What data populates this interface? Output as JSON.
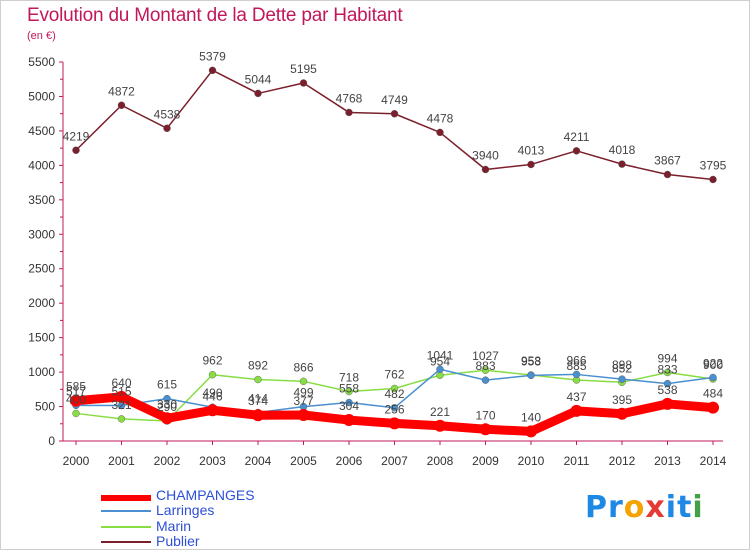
{
  "chart_data": {
    "type": "line",
    "title": "Evolution du Montant de la Dette par Habitant",
    "subtitle": "(en €)",
    "x": [
      "2000",
      "2001",
      "2002",
      "2003",
      "2004",
      "2005",
      "2006",
      "2007",
      "2008",
      "2009",
      "2010",
      "2011",
      "2012",
      "2013",
      "2014"
    ],
    "ylim": [
      0,
      5500
    ],
    "yticks": [
      0,
      500,
      1000,
      1500,
      2000,
      2500,
      3000,
      3500,
      4000,
      4500,
      5000,
      5500
    ],
    "grid": false,
    "legend_position": "bottom-left",
    "series": [
      {
        "name": "CHAMPANGES",
        "color": "#ff0000",
        "emphasis": true,
        "values": [
          585,
          640,
          330,
          446,
          374,
          377,
          304,
          256,
          221,
          170,
          140,
          437,
          395,
          538,
          484
        ]
      },
      {
        "name": "Larringes",
        "color": "#4a8fd0",
        "emphasis": false,
        "values": [
          517,
          515,
          615,
          490,
          414,
          499,
          558,
          482,
          1041,
          883,
          953,
          966,
          898,
          833,
          922
        ]
      },
      {
        "name": "Marin",
        "color": "#88dd44",
        "emphasis": false,
        "values": [
          400,
          321,
          290,
          962,
          892,
          866,
          718,
          762,
          954,
          1027,
          958,
          885,
          852,
          994,
          900
        ]
      },
      {
        "name": "Publier",
        "color": "#7a1f2b",
        "emphasis": false,
        "values": [
          4219,
          4872,
          4538,
          5379,
          5044,
          5195,
          4768,
          4749,
          4478,
          3940,
          4013,
          4211,
          4018,
          3867,
          3795
        ]
      }
    ]
  },
  "brand": {
    "text": "Proxiti",
    "letters": [
      "P",
      "r",
      "o",
      "x",
      "i",
      "t",
      "i"
    ],
    "colors": [
      "#1e88e5",
      "#1e88e5",
      "#f4a300",
      "#e53935",
      "#1e88e5",
      "#1e88e5",
      "#43a047"
    ]
  }
}
